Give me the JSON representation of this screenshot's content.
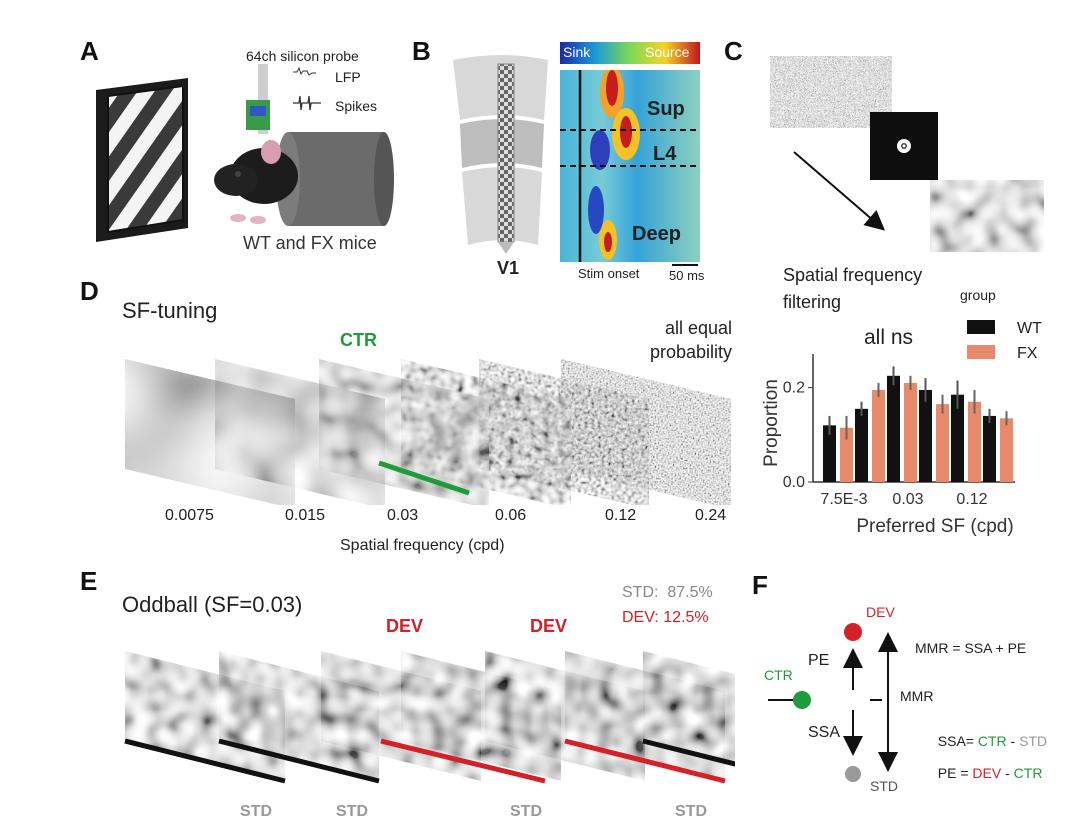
{
  "panels": {
    "a": "A",
    "b": "B",
    "c": "C",
    "d": "D",
    "e": "E",
    "f": "F"
  },
  "panel_a": {
    "probe_label": "64ch silicon probe",
    "lfp_label": "LFP",
    "spikes_label": "Spikes",
    "mice_label": "WT and FX mice"
  },
  "panel_b": {
    "area_label": "V1",
    "sink_label": "Sink",
    "source_label": "Source",
    "layer_sup": "Sup",
    "layer_l4": "L4",
    "layer_deep": "Deep",
    "stim_onset": "Stim onset",
    "scale_bar": "50 ms"
  },
  "panel_c": {
    "filter_caption": "Spatial frequency filtering",
    "legend_title": "group",
    "subtitle": "all ns"
  },
  "panel_d": {
    "title": "SF-tuning",
    "ctr_label": "CTR",
    "note": "all equal probability",
    "sf_values": [
      "0.0075",
      "0.015",
      "0.03",
      "0.06",
      "0.12",
      "0.24"
    ],
    "xlabel": "Spatial frequency (cpd)"
  },
  "panel_e": {
    "title": "Oddball (SF=0.03)",
    "std_prob": "STD:  87.5%",
    "dev_prob": "DEV: 12.5%",
    "dev_label_1": "DEV",
    "dev_label_2": "DEV",
    "std_labels": [
      "STD",
      "STD",
      "STD",
      "STD"
    ]
  },
  "panel_f": {
    "dev": "DEV",
    "ctr": "CTR",
    "std": "STD",
    "pe": "PE",
    "ssa": "SSA",
    "mmr": "MMR",
    "mmr_eq": "MMR = SSA + PE",
    "ssa_eq_a": "SSA= ",
    "ssa_eq_b": "CTR",
    "ssa_eq_c": " - ",
    "ssa_eq_d": "STD",
    "pe_eq_a": "PE = ",
    "pe_eq_b": "DEV",
    "pe_eq_c": " - ",
    "pe_eq_d": "CTR"
  },
  "colors": {
    "wt": "#111111",
    "fx": "#e8896a",
    "ctr": "#1f9b3b",
    "dev": "#d42027",
    "std": "#999999"
  },
  "chart_data": {
    "type": "bar",
    "title": "all ns",
    "xlabel": "Preferred SF (cpd)",
    "ylabel": "Proportion",
    "ylim": [
      0,
      0.25
    ],
    "yticks": [
      "0.0",
      "0.2"
    ],
    "categories": [
      "0.0075",
      "0.015",
      "0.03",
      "0.06",
      "0.12",
      "0.24"
    ],
    "xtick_labels": [
      "7.5E-3",
      "0.03",
      "0.12"
    ],
    "legend_title": "group",
    "legend_position": "top-right",
    "series": [
      {
        "name": "WT",
        "color": "#111111",
        "values": [
          0.12,
          0.155,
          0.225,
          0.195,
          0.185,
          0.14
        ],
        "errors": [
          0.02,
          0.015,
          0.02,
          0.025,
          0.03,
          0.015
        ]
      },
      {
        "name": "FX",
        "color": "#e8896a",
        "values": [
          0.115,
          0.195,
          0.21,
          0.165,
          0.17,
          0.135
        ],
        "errors": [
          0.025,
          0.015,
          0.015,
          0.02,
          0.025,
          0.015
        ]
      }
    ]
  }
}
